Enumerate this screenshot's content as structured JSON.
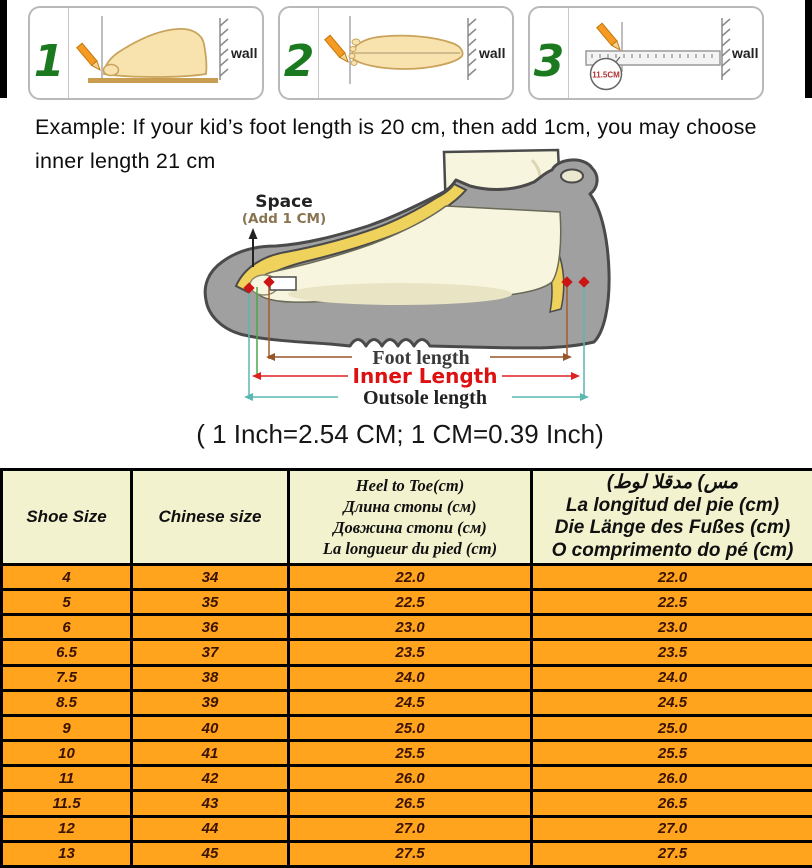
{
  "steps": {
    "panels": [
      {
        "number": "1",
        "wall_label": "wall"
      },
      {
        "number": "2",
        "wall_label": "wall"
      },
      {
        "number": "3",
        "wall_label": "wall",
        "ruler_note": "11.5CM"
      }
    ]
  },
  "example": {
    "line1": "Example: If your kid’s foot length is 20 cm, then add 1cm, you may choose",
    "line2": "inner length 21 cm"
  },
  "diagram": {
    "space_label": "Space",
    "space_sub": "(Add 1 CM)",
    "foot_length_label": "Foot length",
    "inner_length_label": "Inner Length",
    "outsole_length_label": "Outsole length",
    "conversion": "( 1 Inch=2.54 CM; 1 CM=0.39 Inch)"
  },
  "size_table": {
    "headers": {
      "col1": "Shoe Size",
      "col2": "Chinese size",
      "col3_lines": [
        "Heel to Toe(cm)",
        "Длина стопы (см)",
        "Довжина стопи (см)",
        "La longueur du pied (cm)"
      ],
      "col4_lines": [
        "(طول القدم (سم",
        "La longitud del pie (cm)",
        "Die Länge des Fußes (cm)",
        "O comprimento do pé (cm)"
      ]
    },
    "rows": [
      [
        "4",
        "34",
        "22.0",
        "22.0"
      ],
      [
        "5",
        "35",
        "22.5",
        "22.5"
      ],
      [
        "6",
        "36",
        "23.0",
        "23.0"
      ],
      [
        "6.5",
        "37",
        "23.5",
        "23.5"
      ],
      [
        "7.5",
        "38",
        "24.0",
        "24.0"
      ],
      [
        "8.5",
        "39",
        "24.5",
        "24.5"
      ],
      [
        "9",
        "40",
        "25.0",
        "25.0"
      ],
      [
        "10",
        "41",
        "25.5",
        "25.5"
      ],
      [
        "11",
        "42",
        "26.0",
        "26.0"
      ],
      [
        "11.5",
        "43",
        "26.5",
        "26.5"
      ],
      [
        "12",
        "44",
        "27.0",
        "27.0"
      ],
      [
        "13",
        "45",
        "27.5",
        "27.5"
      ]
    ]
  },
  "colors": {
    "row_orange": "#FFA41C",
    "header_bg": "#F3F2CE",
    "step_green": "#1B7A1F",
    "pencil_orange": "#F59A23",
    "inner_length_red": "#E02020",
    "shoe_gray": "#A0A0A0",
    "lining_yellow": "#EFD25C"
  }
}
